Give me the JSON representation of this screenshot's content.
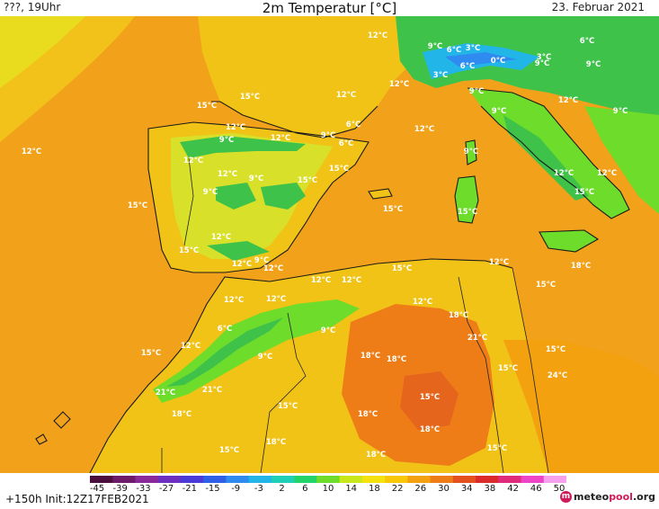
{
  "header": {
    "left": "???, 19Uhr",
    "title": "2m Temperatur [°C]",
    "date": "23. Februar 2021"
  },
  "footer": {
    "init": "+150h  Init:12Z17FEB2021",
    "logo_prefix": "meteo",
    "logo_brand": "pool",
    "logo_suffix": ".org"
  },
  "scale": {
    "ticks": [
      "-45",
      "-39",
      "-33",
      "-27",
      "-21",
      "-15",
      "-9",
      "-3",
      "2",
      "6",
      "10",
      "14",
      "18",
      "22",
      "26",
      "30",
      "34",
      "38",
      "42",
      "46",
      "50"
    ],
    "colors": [
      "#4a0f3d",
      "#6d1a68",
      "#8a2a9a",
      "#6c2fc0",
      "#4a3ad8",
      "#2f5fe6",
      "#2f8bf0",
      "#22b6e8",
      "#1ed0b8",
      "#22d46a",
      "#6edc2a",
      "#c8e81c",
      "#f4e20f",
      "#f8c808",
      "#f3a10f",
      "#ee7d18",
      "#e5501f",
      "#dc2a2a",
      "#e02a7a",
      "#ee44c8",
      "#f6a0ee"
    ]
  },
  "colors": {
    "sea": "#f2a21a",
    "land_warm": "#f0c316",
    "land_cool": "#d9e02a",
    "land_hot": "#ee7d18",
    "mountain": "#3fc24a",
    "cold": "#22b6e8"
  },
  "labels": [
    {
      "text": "12°C"
    },
    {
      "text": "9°C"
    },
    {
      "text": "6°C"
    },
    {
      "text": "3°C"
    },
    {
      "text": "6°C"
    },
    {
      "text": "3°C"
    },
    {
      "text": "0°C"
    },
    {
      "text": "9°C"
    },
    {
      "text": "6°C"
    },
    {
      "text": "3°C"
    },
    {
      "text": "12°C"
    },
    {
      "text": "12°C"
    },
    {
      "text": "9°C"
    },
    {
      "text": "9°C"
    },
    {
      "text": "15°C"
    },
    {
      "text": "15°C"
    },
    {
      "text": "12°C"
    },
    {
      "text": "9°C"
    },
    {
      "text": "6°C"
    },
    {
      "text": "12°C"
    },
    {
      "text": "12°C"
    },
    {
      "text": "9°C"
    },
    {
      "text": "12°C"
    },
    {
      "text": "9°C"
    },
    {
      "text": "12°C"
    },
    {
      "text": "15°C"
    },
    {
      "text": "15°C"
    },
    {
      "text": "12°C"
    },
    {
      "text": "9°C"
    },
    {
      "text": "6°C"
    },
    {
      "text": "9°C"
    },
    {
      "text": "12°C"
    },
    {
      "text": "9°C"
    },
    {
      "text": "12°C"
    },
    {
      "text": "12°C"
    },
    {
      "text": "15°C"
    },
    {
      "text": "15°C"
    },
    {
      "text": "12°C"
    },
    {
      "text": "15°C"
    },
    {
      "text": "9°C"
    },
    {
      "text": "12°C"
    },
    {
      "text": "12°C"
    },
    {
      "text": "12°C"
    },
    {
      "text": "12°C"
    },
    {
      "text": "15°C"
    },
    {
      "text": "9°C"
    },
    {
      "text": "12°C"
    },
    {
      "text": "12°C"
    },
    {
      "text": "6°C"
    },
    {
      "text": "12°C"
    },
    {
      "text": "9°C"
    },
    {
      "text": "9°C"
    },
    {
      "text": "12°C"
    },
    {
      "text": "15°C"
    },
    {
      "text": "15°C"
    },
    {
      "text": "15°C"
    },
    {
      "text": "12°C"
    },
    {
      "text": "18°C"
    },
    {
      "text": "15°C"
    },
    {
      "text": "18°C"
    },
    {
      "text": "18°C"
    },
    {
      "text": "21°C"
    },
    {
      "text": "18°C"
    },
    {
      "text": "15°C"
    },
    {
      "text": "15°C"
    },
    {
      "text": "24°C"
    },
    {
      "text": "15°C"
    },
    {
      "text": "21°C"
    },
    {
      "text": "21°C"
    },
    {
      "text": "18°C"
    },
    {
      "text": "15°C"
    },
    {
      "text": "18°C"
    },
    {
      "text": "18°C"
    },
    {
      "text": "18°C"
    },
    {
      "text": "15°C"
    },
    {
      "text": "18°C"
    },
    {
      "text": "15°C"
    }
  ]
}
